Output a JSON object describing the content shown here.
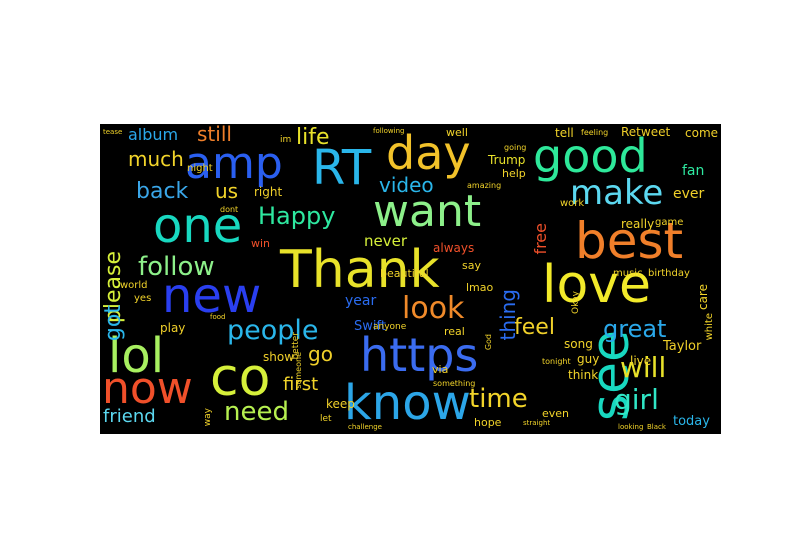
{
  "words": [
    {
      "text": "https",
      "color": "#3b6cf0",
      "weight": 1.0,
      "orient": "h"
    },
    {
      "text": "Thank",
      "color": "#e8e22a",
      "weight": 0.98,
      "orient": "h"
    },
    {
      "text": "see",
      "color": "#18d8c0",
      "weight": 0.95,
      "orient": "v"
    },
    {
      "text": "know",
      "color": "#2ca6e8",
      "weight": 0.92,
      "orient": "h"
    },
    {
      "text": "want",
      "color": "#8df08a",
      "weight": 0.9,
      "orient": "h"
    },
    {
      "text": "one",
      "color": "#18d8c0",
      "weight": 0.9,
      "orient": "h"
    },
    {
      "text": "new",
      "color": "#2a3ff0",
      "weight": 0.88,
      "orient": "h"
    },
    {
      "text": "love",
      "color": "#f2ea2a",
      "weight": 0.88,
      "orient": "h"
    },
    {
      "text": "best",
      "color": "#f07f2a",
      "weight": 0.85,
      "orient": "h"
    },
    {
      "text": "good",
      "color": "#2ee89a",
      "weight": 0.82,
      "orient": "h"
    },
    {
      "text": "RT",
      "color": "#2ab6ea",
      "weight": 0.82,
      "orient": "h"
    },
    {
      "text": "day",
      "color": "#f2c22a",
      "weight": 0.82,
      "orient": "h"
    },
    {
      "text": "amp",
      "color": "#2a5ff0",
      "weight": 0.8,
      "orient": "h"
    },
    {
      "text": "lol",
      "color": "#a8f060",
      "weight": 0.8,
      "orient": "h"
    },
    {
      "text": "now",
      "color": "#f0502a",
      "weight": 0.78,
      "orient": "h"
    },
    {
      "text": "co",
      "color": "#d6f03a",
      "weight": 0.78,
      "orient": "h"
    },
    {
      "text": "make",
      "color": "#5cd8f0",
      "weight": 0.7,
      "orient": "h"
    },
    {
      "text": "look",
      "color": "#f08a2a",
      "weight": 0.68,
      "orient": "h"
    },
    {
      "text": "people",
      "color": "#2ab6ea",
      "weight": 0.64,
      "orient": "h"
    },
    {
      "text": "time",
      "color": "#f2d42a",
      "weight": 0.62,
      "orient": "h"
    },
    {
      "text": "will",
      "color": "#e8e22a",
      "weight": 0.6,
      "orient": "h"
    },
    {
      "text": "girl",
      "color": "#30e6c6",
      "weight": 0.6,
      "orient": "h"
    },
    {
      "text": "follow",
      "color": "#8df08a",
      "weight": 0.58,
      "orient": "h"
    },
    {
      "text": "need",
      "color": "#b6f050",
      "weight": 0.58,
      "orient": "h"
    },
    {
      "text": "Happy",
      "color": "#2ee8a0",
      "weight": 0.56,
      "orient": "h"
    },
    {
      "text": "great",
      "color": "#2aa8ea",
      "weight": 0.56,
      "orient": "h"
    },
    {
      "text": "feel",
      "color": "#f0d02a",
      "weight": 0.54,
      "orient": "h"
    },
    {
      "text": "back",
      "color": "#3aa6e8",
      "weight": 0.52,
      "orient": "h"
    },
    {
      "text": "video",
      "color": "#2ab6ea",
      "weight": 0.5,
      "orient": "h"
    },
    {
      "text": "life",
      "color": "#e8e22a",
      "weight": 0.5,
      "orient": "h"
    },
    {
      "text": "please",
      "color": "#d6f03a",
      "weight": 0.5,
      "orient": "v"
    },
    {
      "text": "got",
      "color": "#2ab6ea",
      "weight": 0.5,
      "orient": "v"
    },
    {
      "text": "thing",
      "color": "#2a6cf0",
      "weight": 0.5,
      "orient": "v"
    },
    {
      "text": "much",
      "color": "#f2d42a",
      "weight": 0.46,
      "orient": "h"
    },
    {
      "text": "go",
      "color": "#f0d02a",
      "weight": 0.46,
      "orient": "h"
    },
    {
      "text": "first",
      "color": "#f2d42a",
      "weight": 0.44,
      "orient": "h"
    },
    {
      "text": "friend",
      "color": "#5cd8f0",
      "weight": 0.44,
      "orient": "h"
    },
    {
      "text": "still",
      "color": "#f07f2a",
      "weight": 0.42,
      "orient": "h"
    },
    {
      "text": "album",
      "color": "#2aa8ea",
      "weight": 0.42,
      "orient": "h"
    },
    {
      "text": "us",
      "color": "#f2d42a",
      "weight": 0.42,
      "orient": "h"
    },
    {
      "text": "never",
      "color": "#d6f03a",
      "weight": 0.36,
      "orient": "h"
    },
    {
      "text": "free",
      "color": "#f0502a",
      "weight": 0.36,
      "orient": "v"
    },
    {
      "text": "year",
      "color": "#2a6cf0",
      "weight": 0.34,
      "orient": "h"
    },
    {
      "text": "Swift",
      "color": "#2a6cf0",
      "weight": 0.32,
      "orient": "h"
    },
    {
      "text": "Trump",
      "color": "#e8e22a",
      "weight": 0.3,
      "orient": "h"
    },
    {
      "text": "fan",
      "color": "#2ee8a0",
      "weight": 0.3,
      "orient": "h"
    },
    {
      "text": "ever",
      "color": "#f0d02a",
      "weight": 0.3,
      "orient": "h"
    },
    {
      "text": "Taylor",
      "color": "#f0d02a",
      "weight": 0.3,
      "orient": "h"
    },
    {
      "text": "Retweet",
      "color": "#f0d02a",
      "weight": 0.28,
      "orient": "h"
    },
    {
      "text": "tell",
      "color": "#f2d42a",
      "weight": 0.28,
      "orient": "h"
    },
    {
      "text": "come",
      "color": "#f0d02a",
      "weight": 0.28,
      "orient": "h"
    },
    {
      "text": "show",
      "color": "#f0d02a",
      "weight": 0.26,
      "orient": "h"
    },
    {
      "text": "keep",
      "color": "#f0d02a",
      "weight": 0.26,
      "orient": "h"
    },
    {
      "text": "today",
      "color": "#2ab6ea",
      "weight": 0.26,
      "orient": "h"
    },
    {
      "text": "live",
      "color": "#f2d42a",
      "weight": 0.26,
      "orient": "h"
    },
    {
      "text": "play",
      "color": "#f0d02a",
      "weight": 0.24,
      "orient": "h"
    },
    {
      "text": "right",
      "color": "#f0d02a",
      "weight": 0.24,
      "orient": "h"
    },
    {
      "text": "always",
      "color": "#f0502a",
      "weight": 0.24,
      "orient": "h"
    },
    {
      "text": "song",
      "color": "#f2d42a",
      "weight": 0.24,
      "orient": "h"
    },
    {
      "text": "guy",
      "color": "#f2d42a",
      "weight": 0.24,
      "orient": "h"
    },
    {
      "text": "think",
      "color": "#f2d42a",
      "weight": 0.24,
      "orient": "h"
    },
    {
      "text": "care",
      "color": "#f2d42a",
      "weight": 0.24,
      "orient": "v"
    },
    {
      "text": "really",
      "color": "#f2d42a",
      "weight": 0.24,
      "orient": "h"
    },
    {
      "text": "beautiful",
      "color": "#f2d42a",
      "weight": 0.22,
      "orient": "h"
    },
    {
      "text": "real",
      "color": "#f2d42a",
      "weight": 0.22,
      "orient": "h"
    },
    {
      "text": "say",
      "color": "#f2d42a",
      "weight": 0.22,
      "orient": "h"
    },
    {
      "text": "lmao",
      "color": "#f2d42a",
      "weight": 0.22,
      "orient": "h"
    },
    {
      "text": "hope",
      "color": "#f2d42a",
      "weight": 0.22,
      "orient": "h"
    },
    {
      "text": "even",
      "color": "#f2d42a",
      "weight": 0.22,
      "orient": "h"
    },
    {
      "text": "via",
      "color": "#f0d02a",
      "weight": 0.22,
      "orient": "h"
    },
    {
      "text": "help",
      "color": "#f2d42a",
      "weight": 0.22,
      "orient": "h"
    },
    {
      "text": "well",
      "color": "#f2d42a",
      "weight": 0.22,
      "orient": "h"
    },
    {
      "text": "night",
      "color": "#f2d42a",
      "weight": 0.2,
      "orient": "h"
    },
    {
      "text": "white",
      "color": "#f2d42a",
      "weight": 0.2,
      "orient": "v"
    },
    {
      "text": "birthday",
      "color": "#f2d42a",
      "weight": 0.2,
      "orient": "h"
    },
    {
      "text": "music",
      "color": "#f2d42a",
      "weight": 0.2,
      "orient": "h"
    },
    {
      "text": "game",
      "color": "#f2d42a",
      "weight": 0.2,
      "orient": "h"
    },
    {
      "text": "work",
      "color": "#f2d42a",
      "weight": 0.2,
      "orient": "h"
    },
    {
      "text": "win",
      "color": "#f0502a",
      "weight": 0.2,
      "orient": "h"
    },
    {
      "text": "better",
      "color": "#f2d42a",
      "weight": 0.2,
      "orient": "v"
    },
    {
      "text": "world",
      "color": "#f2d42a",
      "weight": 0.2,
      "orient": "h"
    },
    {
      "text": "yes",
      "color": "#f2d42a",
      "weight": 0.2,
      "orient": "h"
    },
    {
      "text": "Okay",
      "color": "#f2d42a",
      "weight": 0.18,
      "orient": "v"
    },
    {
      "text": "anyone",
      "color": "#f2d42a",
      "weight": 0.18,
      "orient": "h"
    },
    {
      "text": "let",
      "color": "#f2d42a",
      "weight": 0.18,
      "orient": "h"
    },
    {
      "text": "way",
      "color": "#f2d42a",
      "weight": 0.18,
      "orient": "v"
    },
    {
      "text": "God",
      "color": "#f2d42a",
      "weight": 0.16,
      "orient": "v"
    },
    {
      "text": "someone",
      "color": "#f2d42a",
      "weight": 0.16,
      "orient": "v"
    },
    {
      "text": "amazing",
      "color": "#f2d42a",
      "weight": 0.16,
      "orient": "h"
    },
    {
      "text": "going",
      "color": "#f2d42a",
      "weight": 0.16,
      "orient": "h"
    },
    {
      "text": "feeling",
      "color": "#f2d42a",
      "weight": 0.16,
      "orient": "h"
    },
    {
      "text": "dont",
      "color": "#f2d42a",
      "weight": 0.16,
      "orient": "h"
    },
    {
      "text": "tonight",
      "color": "#f2d42a",
      "weight": 0.16,
      "orient": "h"
    },
    {
      "text": "something",
      "color": "#f2d42a",
      "weight": 0.14,
      "orient": "h"
    },
    {
      "text": "im",
      "color": "#f2d42a",
      "weight": 0.14,
      "orient": "h"
    },
    {
      "text": "following",
      "color": "#f2d42a",
      "weight": 0.12,
      "orient": "h"
    },
    {
      "text": "tease",
      "color": "#f2d42a",
      "weight": 0.12,
      "orient": "h"
    },
    {
      "text": "food",
      "color": "#f2d42a",
      "weight": 0.12,
      "orient": "h"
    },
    {
      "text": "challenge",
      "color": "#f2d42a",
      "weight": 0.12,
      "orient": "h"
    },
    {
      "text": "straight",
      "color": "#f2d42a",
      "weight": 0.12,
      "orient": "h"
    },
    {
      "text": "looking",
      "color": "#f2d42a",
      "weight": 0.12,
      "orient": "h"
    },
    {
      "text": "Black",
      "color": "#f2d42a",
      "weight": 0.12,
      "orient": "h"
    }
  ]
}
